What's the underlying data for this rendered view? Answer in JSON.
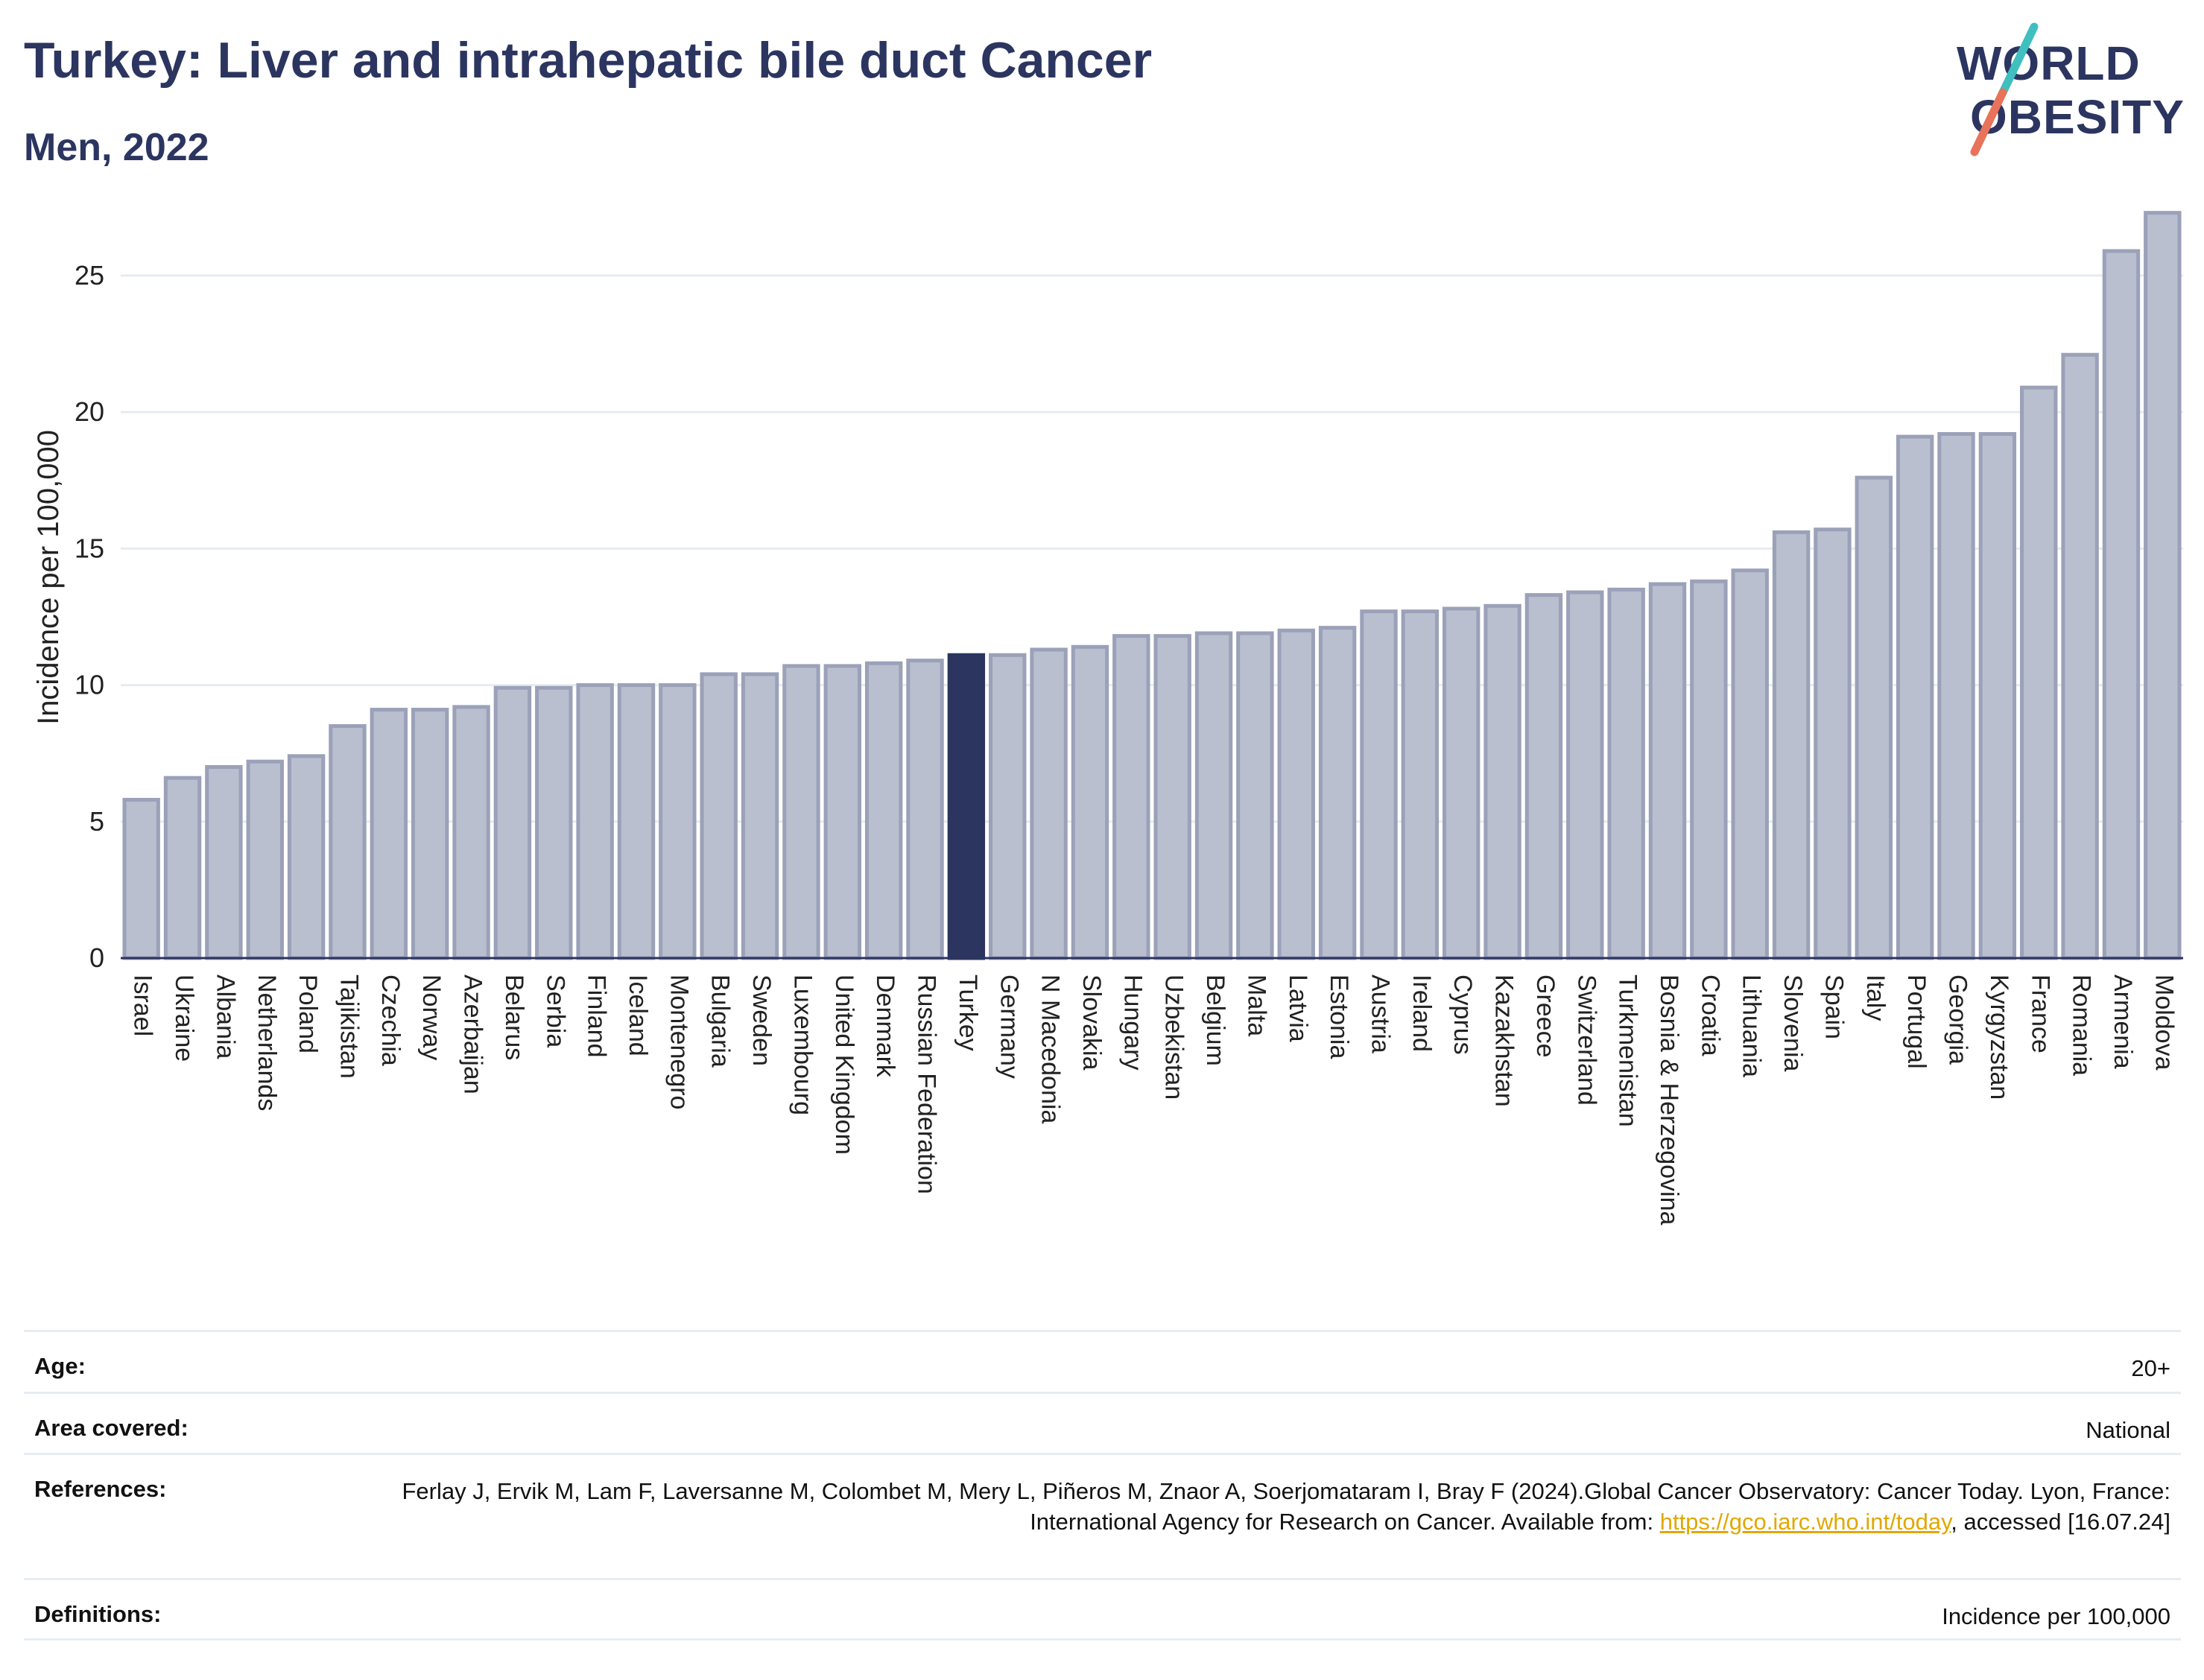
{
  "header": {
    "title": "Turkey: Liver and intrahepatic bile duct Cancer",
    "subtitle": "Men, 2022"
  },
  "logo": {
    "line1": "WORLD",
    "line2": "OBESITY",
    "colors": {
      "text": "#2b3560",
      "slash_top": "#3fbfbf",
      "slash_bottom": "#e8735a"
    }
  },
  "chart_data": {
    "type": "bar",
    "ylabel": "Incidence per 100,000",
    "ylim": [
      0,
      28
    ],
    "yticks": [
      0,
      5,
      10,
      15,
      20,
      25
    ],
    "grid": true,
    "highlight": "Turkey",
    "colors": {
      "bar": "#b9bfcf",
      "bar_border": "#9aa1b8",
      "highlight": "#2b3560",
      "grid": "#e6ebf0"
    },
    "categories": [
      "Israel",
      "Ukraine",
      "Albania",
      "Netherlands",
      "Poland",
      "Tajikistan",
      "Czechia",
      "Norway",
      "Azerbaijan",
      "Belarus",
      "Serbia",
      "Finland",
      "Iceland",
      "Montenegro",
      "Bulgaria",
      "Sweden",
      "Luxembourg",
      "United Kingdom",
      "Denmark",
      "Russian Federation",
      "Turkey",
      "Germany",
      "N Macedonia",
      "Slovakia",
      "Hungary",
      "Uzbekistan",
      "Belgium",
      "Malta",
      "Latvia",
      "Estonia",
      "Austria",
      "Ireland",
      "Cyprus",
      "Kazakhstan",
      "Greece",
      "Switzerland",
      "Turkmenistan",
      "Bosnia & Herzegovina",
      "Croatia",
      "Lithuania",
      "Slovenia",
      "Spain",
      "Italy",
      "Portugal",
      "Georgia",
      "Kyrgyzstan",
      "France",
      "Romania",
      "Armenia",
      "Moldova"
    ],
    "values": [
      5.8,
      6.6,
      7.0,
      7.2,
      7.4,
      8.5,
      9.1,
      9.1,
      9.2,
      9.9,
      9.9,
      10.0,
      10.0,
      10.0,
      10.4,
      10.4,
      10.7,
      10.7,
      10.8,
      10.9,
      11.1,
      11.1,
      11.3,
      11.4,
      11.8,
      11.8,
      11.9,
      11.9,
      12.0,
      12.1,
      12.7,
      12.7,
      12.8,
      12.9,
      13.3,
      13.4,
      13.5,
      13.7,
      13.8,
      14.2,
      15.6,
      15.7,
      17.6,
      19.1,
      19.2,
      19.2,
      20.9,
      22.1,
      25.9,
      27.3
    ]
  },
  "info": {
    "age": {
      "key": "Age:",
      "value": "20+"
    },
    "area": {
      "key": "Area covered:",
      "value": "National"
    },
    "references": {
      "key": "References:",
      "text_before": "Ferlay J, Ervik M, Lam F, Laversanne M, Colombet M, Mery L, Piñeros M, Znaor A, Soerjomataram I, Bray F (2024).Global Cancer Observatory: Cancer Today. Lyon, France: International Agency for Research on Cancer. Available from: ",
      "link": "https://gco.iarc.who.int/today",
      "text_after": ", accessed [16.07.24]"
    },
    "definitions": {
      "key": "Definitions:",
      "value": "Incidence per 100,000"
    }
  }
}
